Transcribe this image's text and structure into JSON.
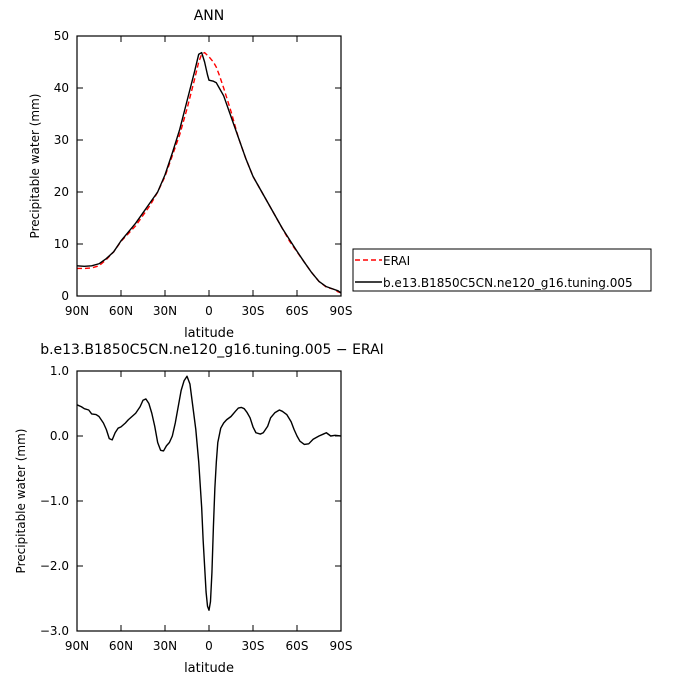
{
  "chart_data": [
    {
      "type": "line",
      "title": "ANN",
      "xlabel": "latitude",
      "ylabel": "Precipitable water  (mm)",
      "xlim": [
        90,
        -90
      ],
      "ylim": [
        0,
        50
      ],
      "x_ticks": [
        90,
        60,
        30,
        0,
        -30,
        -60,
        -90
      ],
      "x_tick_labels": [
        "90N",
        "60N",
        "30N",
        "0",
        "30S",
        "60S",
        "90S"
      ],
      "y_ticks": [
        0,
        10,
        20,
        30,
        40,
        50
      ],
      "y_tick_labels": [
        "0",
        "10",
        "20",
        "30",
        "40",
        "50"
      ],
      "legend_placement": "right",
      "series": [
        {
          "name": "ERAI",
          "color": "#ff0000",
          "dash": "dashed",
          "points": [
            [
              90,
              5.3
            ],
            [
              85,
              5.3
            ],
            [
              80,
              5.4
            ],
            [
              75,
              5.8
            ],
            [
              70,
              7
            ],
            [
              65,
              8.5
            ],
            [
              60,
              10.5
            ],
            [
              55,
              12
            ],
            [
              50,
              13.5
            ],
            [
              45,
              15.5
            ],
            [
              40,
              17.5
            ],
            [
              35,
              20
            ],
            [
              30,
              23
            ],
            [
              25,
              27
            ],
            [
              20,
              31
            ],
            [
              15,
              36
            ],
            [
              10,
              41.5
            ],
            [
              7,
              45
            ],
            [
              5,
              46.5
            ],
            [
              3,
              46.8
            ],
            [
              0,
              46
            ],
            [
              -3,
              45
            ],
            [
              -5,
              44
            ],
            [
              -7,
              42.5
            ],
            [
              -10,
              40
            ],
            [
              -15,
              35.5
            ],
            [
              -20,
              30.5
            ],
            [
              -25,
              26.5
            ],
            [
              -30,
              23
            ],
            [
              -35,
              20.5
            ],
            [
              -40,
              18
            ],
            [
              -45,
              15.5
            ],
            [
              -50,
              13
            ],
            [
              -55,
              10.5
            ],
            [
              -60,
              8.5
            ],
            [
              -65,
              6.5
            ],
            [
              -70,
              4.5
            ],
            [
              -75,
              2.8
            ],
            [
              -80,
              1.7
            ],
            [
              -85,
              1.3
            ],
            [
              -88,
              0.8
            ],
            [
              -90,
              0.6
            ]
          ]
        },
        {
          "name": "b.e13.B1850C5CN.ne120_g16.tuning.005",
          "color": "#000000",
          "dash": "solid",
          "points": [
            [
              90,
              5.8
            ],
            [
              85,
              5.7
            ],
            [
              80,
              5.8
            ],
            [
              75,
              6.2
            ],
            [
              70,
              7.2
            ],
            [
              65,
              8.5
            ],
            [
              60,
              10.6
            ],
            [
              55,
              12.3
            ],
            [
              50,
              14
            ],
            [
              45,
              16
            ],
            [
              40,
              18
            ],
            [
              35,
              20
            ],
            [
              30,
              23.3
            ],
            [
              25,
              27.5
            ],
            [
              20,
              32
            ],
            [
              15,
              37.5
            ],
            [
              10,
              43
            ],
            [
              7,
              46.5
            ],
            [
              5,
              46.8
            ],
            [
              3,
              45
            ],
            [
              1,
              42.5
            ],
            [
              0,
              41.5
            ],
            [
              -3,
              41.3
            ],
            [
              -5,
              41
            ],
            [
              -7,
              40
            ],
            [
              -10,
              38.5
            ],
            [
              -15,
              34.5
            ],
            [
              -20,
              30.5
            ],
            [
              -25,
              26.5
            ],
            [
              -30,
              23
            ],
            [
              -35,
              20.5
            ],
            [
              -40,
              18
            ],
            [
              -45,
              15.5
            ],
            [
              -50,
              13
            ],
            [
              -55,
              10.8
            ],
            [
              -60,
              8.6
            ],
            [
              -65,
              6.5
            ],
            [
              -70,
              4.5
            ],
            [
              -75,
              2.8
            ],
            [
              -80,
              1.8
            ],
            [
              -85,
              1.3
            ],
            [
              -88,
              1
            ],
            [
              -90,
              0.6
            ]
          ]
        }
      ]
    },
    {
      "type": "line",
      "title": "b.e13.B1850C5CN.ne120_g16.tuning.005  −  ERAI",
      "xlabel": "latitude",
      "ylabel": "Precipitable water  (mm)",
      "xlim": [
        90,
        -90
      ],
      "ylim": [
        -3,
        1
      ],
      "x_ticks": [
        90,
        60,
        30,
        0,
        -30,
        -60,
        -90
      ],
      "x_tick_labels": [
        "90N",
        "60N",
        "30N",
        "0",
        "30S",
        "60S",
        "90S"
      ],
      "y_ticks": [
        -3,
        -2,
        -1,
        0,
        1
      ],
      "y_tick_labels": [
        "−3.0",
        "−2.0",
        "−1.0",
        "0.0",
        "1.0"
      ],
      "series": [
        {
          "color": "#000000",
          "dash": "solid",
          "points": [
            [
              90,
              0.48
            ],
            [
              87,
              0.45
            ],
            [
              85,
              0.42
            ],
            [
              82,
              0.4
            ],
            [
              80,
              0.34
            ],
            [
              77,
              0.33
            ],
            [
              75,
              0.3
            ],
            [
              72,
              0.2
            ],
            [
              70,
              0.1
            ],
            [
              68,
              -0.04
            ],
            [
              66,
              -0.06
            ],
            [
              64,
              0.05
            ],
            [
              62,
              0.12
            ],
            [
              60,
              0.14
            ],
            [
              57,
              0.2
            ],
            [
              55,
              0.25
            ],
            [
              50,
              0.35
            ],
            [
              47,
              0.45
            ],
            [
              45,
              0.55
            ],
            [
              43,
              0.57
            ],
            [
              41,
              0.5
            ],
            [
              39,
              0.35
            ],
            [
              37,
              0.15
            ],
            [
              35,
              -0.1
            ],
            [
              33,
              -0.22
            ],
            [
              31,
              -0.23
            ],
            [
              29,
              -0.15
            ],
            [
              27,
              -0.1
            ],
            [
              25,
              0.0
            ],
            [
              23,
              0.2
            ],
            [
              21,
              0.45
            ],
            [
              19,
              0.7
            ],
            [
              17,
              0.85
            ],
            [
              15,
              0.92
            ],
            [
              13,
              0.8
            ],
            [
              11,
              0.45
            ],
            [
              9,
              0.1
            ],
            [
              7,
              -0.4
            ],
            [
              5,
              -1.1
            ],
            [
              4,
              -1.6
            ],
            [
              3,
              -2.0
            ],
            [
              2,
              -2.4
            ],
            [
              1,
              -2.62
            ],
            [
              0,
              -2.68
            ],
            [
              -1,
              -2.55
            ],
            [
              -2,
              -2.1
            ],
            [
              -3,
              -1.4
            ],
            [
              -4,
              -0.8
            ],
            [
              -5,
              -0.4
            ],
            [
              -6,
              -0.1
            ],
            [
              -8,
              0.12
            ],
            [
              -10,
              0.2
            ],
            [
              -12,
              0.25
            ],
            [
              -15,
              0.3
            ],
            [
              -18,
              0.38
            ],
            [
              -20,
              0.43
            ],
            [
              -22,
              0.44
            ],
            [
              -24,
              0.42
            ],
            [
              -26,
              0.36
            ],
            [
              -28,
              0.28
            ],
            [
              -30,
              0.14
            ],
            [
              -32,
              0.05
            ],
            [
              -35,
              0.03
            ],
            [
              -37,
              0.05
            ],
            [
              -40,
              0.15
            ],
            [
              -42,
              0.28
            ],
            [
              -45,
              0.36
            ],
            [
              -48,
              0.4
            ],
            [
              -50,
              0.38
            ],
            [
              -53,
              0.33
            ],
            [
              -56,
              0.22
            ],
            [
              -58,
              0.1
            ],
            [
              -60,
              0.0
            ],
            [
              -62,
              -0.08
            ],
            [
              -65,
              -0.13
            ],
            [
              -68,
              -0.12
            ],
            [
              -71,
              -0.05
            ],
            [
              -75,
              0.0
            ],
            [
              -78,
              0.03
            ],
            [
              -80,
              0.05
            ],
            [
              -83,
              0.0
            ],
            [
              -86,
              0.01
            ],
            [
              -90,
              0.0
            ]
          ]
        }
      ]
    }
  ]
}
